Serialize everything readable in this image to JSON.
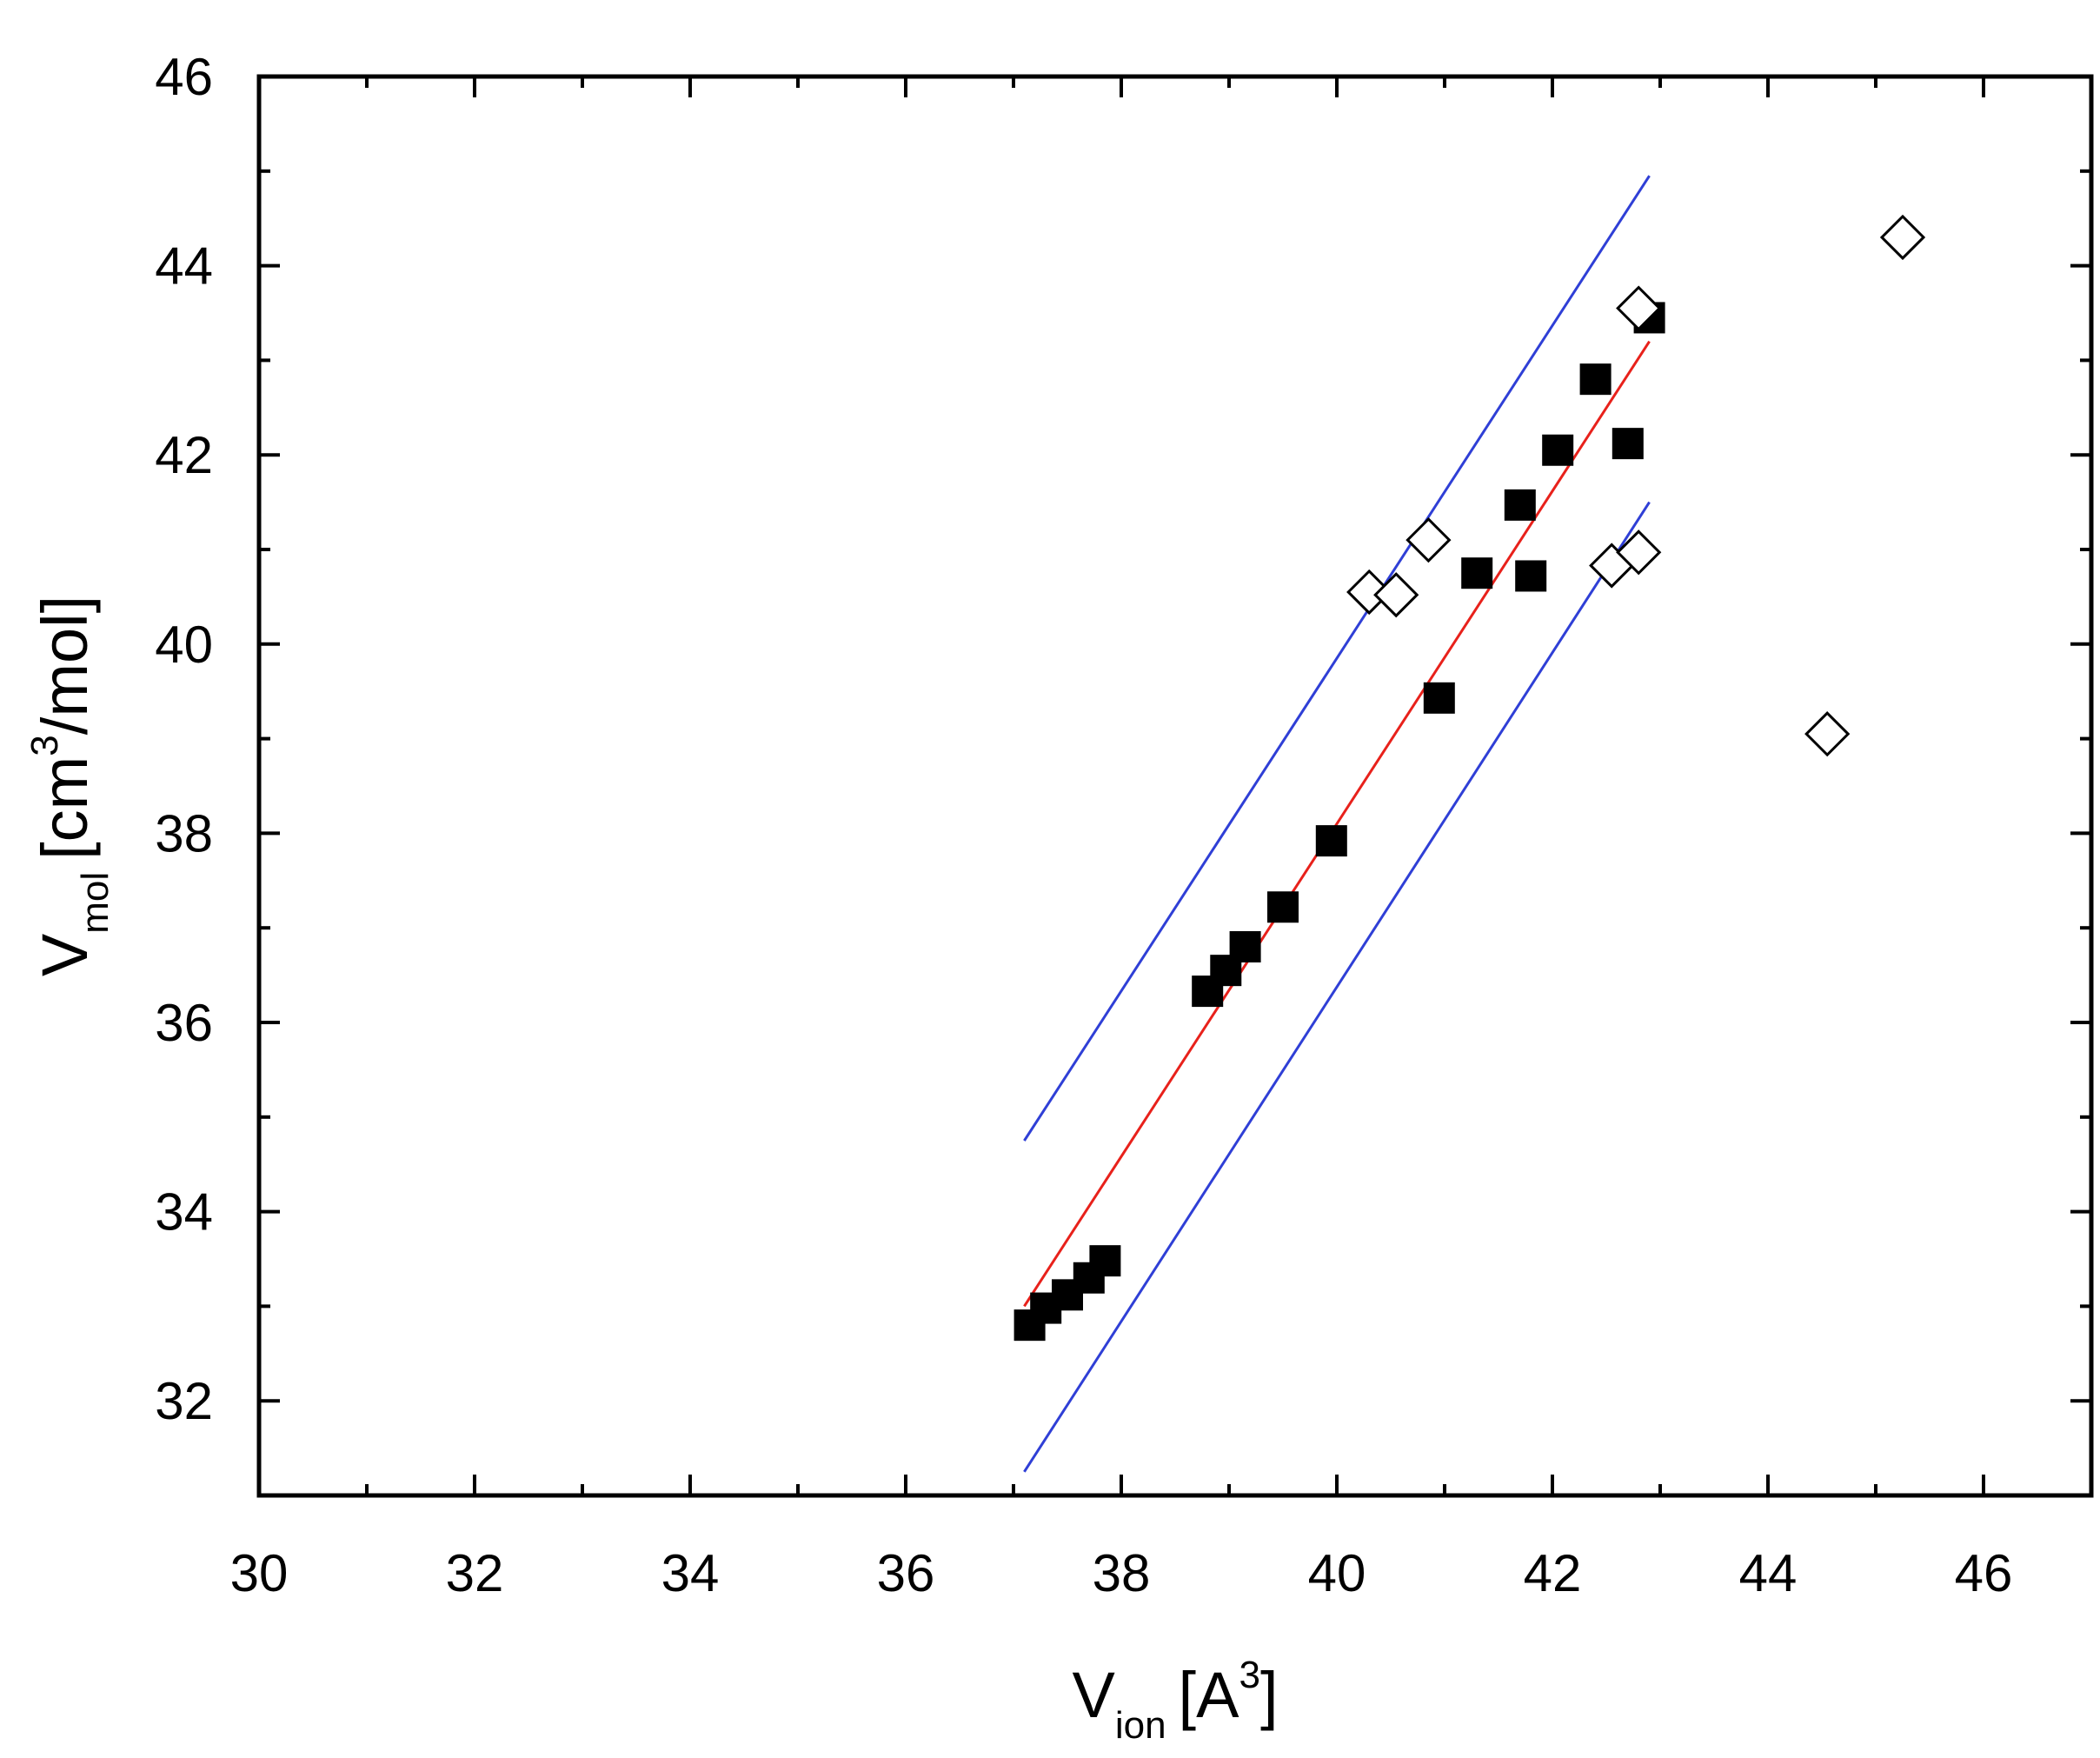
{
  "chart_data": {
    "type": "scatter",
    "title": "",
    "xlabel": {
      "main": "V",
      "sub": "ion",
      "rest_pre": "[A",
      "sup": "3",
      "rest_post": "]"
    },
    "ylabel": {
      "main": "V",
      "sub": "mol",
      "rest_pre": "[cm",
      "sup": "3",
      "rest_post": "/mol]"
    },
    "xlim": [
      30,
      47
    ],
    "ylim": [
      31,
      46
    ],
    "x_ticks": [
      "30",
      "32",
      "34",
      "36",
      "38",
      "40",
      "42",
      "44",
      "46"
    ],
    "y_ticks": [
      "32",
      "34",
      "36",
      "38",
      "40",
      "42",
      "44",
      "46"
    ],
    "grid": false,
    "legend": "none",
    "series": [
      {
        "marker": "filled-square",
        "color": "#000000",
        "points": [
          [
            37.15,
            32.8
          ],
          [
            37.3,
            32.98
          ],
          [
            37.5,
            33.12
          ],
          [
            37.7,
            33.3
          ],
          [
            37.85,
            33.48
          ],
          [
            38.8,
            36.33
          ],
          [
            38.97,
            36.55
          ],
          [
            39.15,
            36.8
          ],
          [
            39.5,
            37.22
          ],
          [
            39.95,
            37.92
          ],
          [
            40.95,
            39.43
          ],
          [
            41.3,
            40.75
          ],
          [
            41.7,
            41.47
          ],
          [
            41.8,
            40.72
          ],
          [
            42.05,
            42.05
          ],
          [
            42.4,
            42.8
          ],
          [
            42.7,
            42.12
          ],
          [
            42.9,
            43.45
          ]
        ]
      },
      {
        "marker": "open-diamond",
        "color": "#000000",
        "points": [
          [
            40.3,
            40.55
          ],
          [
            40.55,
            40.52
          ],
          [
            40.85,
            41.1
          ],
          [
            42.55,
            40.83
          ],
          [
            42.8,
            40.97
          ],
          [
            42.8,
            43.55
          ],
          [
            44.55,
            39.05
          ],
          [
            45.25,
            44.3
          ]
        ]
      }
    ],
    "lines": [
      {
        "role": "fit",
        "color": "#e8211b",
        "points": [
          [
            37.1,
            33.0
          ],
          [
            42.9,
            43.2
          ]
        ]
      },
      {
        "role": "upper-band",
        "color": "#2f3fd6",
        "points": [
          [
            37.1,
            34.75
          ],
          [
            42.9,
            44.95
          ]
        ]
      },
      {
        "role": "lower-band",
        "color": "#2f3fd6",
        "points": [
          [
            37.1,
            31.25
          ],
          [
            42.9,
            41.5
          ]
        ]
      }
    ]
  }
}
